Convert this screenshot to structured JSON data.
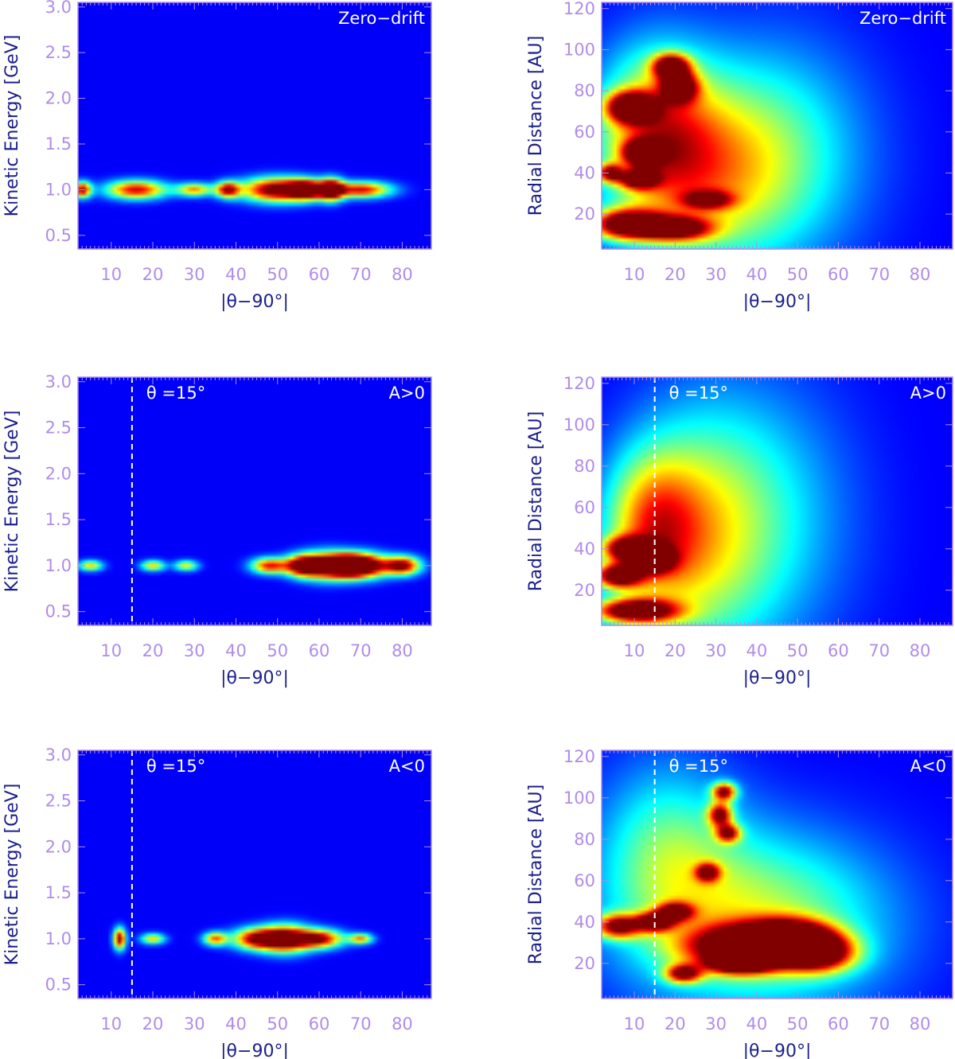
{
  "chart_data": [
    {
      "id": "p1",
      "type": "heatmap",
      "xlabel": "|θ−90°|",
      "ylabel": "Kinetic Energy [GeV]",
      "xlim": [
        2,
        87
      ],
      "ylim": [
        0.35,
        3.05
      ],
      "xticks": [
        10,
        20,
        30,
        40,
        50,
        60,
        70,
        80
      ],
      "yticks": [
        0.5,
        1.0,
        1.5,
        2.0,
        2.5,
        3.0
      ],
      "label_right": "Zero−drift",
      "label_left": "",
      "dashed_x": null,
      "blobs": [
        {
          "x": 3,
          "y": 1.0,
          "sx": 1.5,
          "sy": 0.06,
          "a": 0.85
        },
        {
          "x": 16,
          "y": 1.0,
          "sx": 5,
          "sy": 0.07,
          "a": 0.8
        },
        {
          "x": 30,
          "y": 1.0,
          "sx": 3,
          "sy": 0.05,
          "a": 0.6
        },
        {
          "x": 38,
          "y": 1.0,
          "sx": 2,
          "sy": 0.06,
          "a": 0.8
        },
        {
          "x": 50,
          "y": 1.0,
          "sx": 6,
          "sy": 0.09,
          "a": 1.0
        },
        {
          "x": 57,
          "y": 1.0,
          "sx": 3,
          "sy": 0.07,
          "a": 0.95
        },
        {
          "x": 63,
          "y": 1.0,
          "sx": 2,
          "sy": 0.08,
          "a": 1.0
        },
        {
          "x": 70,
          "y": 1.0,
          "sx": 5,
          "sy": 0.06,
          "a": 0.8
        }
      ]
    },
    {
      "id": "p2",
      "type": "heatmap",
      "xlabel": "|θ−90°|",
      "ylabel": "Radial Distance [AU]",
      "xlim": [
        2,
        88
      ],
      "ylim": [
        3,
        123
      ],
      "xticks": [
        10,
        20,
        30,
        40,
        50,
        60,
        70,
        80
      ],
      "yticks": [
        20,
        40,
        60,
        80,
        100,
        120
      ],
      "label_right": "Zero−drift",
      "label_left": "",
      "dashed_x": null,
      "blobs": [
        {
          "x": 8,
          "y": 15,
          "sx": 6,
          "sy": 5,
          "a": 1.0
        },
        {
          "x": 20,
          "y": 13,
          "sx": 6,
          "sy": 4,
          "a": 0.8
        },
        {
          "x": 9,
          "y": 72,
          "sx": 4,
          "sy": 5,
          "a": 0.95
        },
        {
          "x": 19,
          "y": 92,
          "sx": 3,
          "sy": 4,
          "a": 0.9
        },
        {
          "x": 21,
          "y": 82,
          "sx": 3,
          "sy": 5,
          "a": 0.8
        },
        {
          "x": 12,
          "y": 50,
          "sx": 3,
          "sy": 4,
          "a": 0.85
        },
        {
          "x": 11,
          "y": 37,
          "sx": 3,
          "sy": 3,
          "a": 0.8
        },
        {
          "x": 4,
          "y": 40,
          "sx": 2,
          "sy": 3,
          "a": 0.7
        },
        {
          "x": 15,
          "y": 60,
          "sx": 10,
          "sy": 28,
          "a": 0.55
        },
        {
          "x": 28,
          "y": 40,
          "sx": 14,
          "sy": 30,
          "a": 0.4
        },
        {
          "x": 45,
          "y": 50,
          "sx": 16,
          "sy": 38,
          "a": 0.28
        },
        {
          "x": 28,
          "y": 27,
          "sx": 4,
          "sy": 3,
          "a": 0.55
        }
      ]
    },
    {
      "id": "p3",
      "type": "heatmap",
      "xlabel": "|θ−90°|",
      "ylabel": "Kinetic Energy [GeV]",
      "xlim": [
        2,
        87
      ],
      "ylim": [
        0.35,
        3.05
      ],
      "xticks": [
        10,
        20,
        30,
        40,
        50,
        60,
        70,
        80
      ],
      "yticks": [
        0.5,
        1.0,
        1.5,
        2.0,
        2.5,
        3.0
      ],
      "label_right": "A>0",
      "label_left": "θ =15°",
      "dashed_x": 15,
      "blobs": [
        {
          "x": 5,
          "y": 1.0,
          "sx": 2,
          "sy": 0.04,
          "a": 0.55
        },
        {
          "x": 20,
          "y": 1.0,
          "sx": 2,
          "sy": 0.04,
          "a": 0.55
        },
        {
          "x": 28,
          "y": 1.0,
          "sx": 2,
          "sy": 0.04,
          "a": 0.5
        },
        {
          "x": 48,
          "y": 1.0,
          "sx": 3,
          "sy": 0.06,
          "a": 0.75
        },
        {
          "x": 56,
          "y": 1.0,
          "sx": 3,
          "sy": 0.08,
          "a": 0.95
        },
        {
          "x": 62,
          "y": 1.0,
          "sx": 4,
          "sy": 0.1,
          "a": 1.0
        },
        {
          "x": 71,
          "y": 1.0,
          "sx": 4,
          "sy": 0.09,
          "a": 1.0
        },
        {
          "x": 80,
          "y": 1.0,
          "sx": 3,
          "sy": 0.07,
          "a": 0.9
        },
        {
          "x": 67,
          "y": 1.0,
          "sx": 3,
          "sy": 0.08,
          "a": 0.85
        }
      ]
    },
    {
      "id": "p4",
      "type": "heatmap",
      "xlabel": "|θ−90°|",
      "ylabel": "Radial Distance [AU]",
      "xlim": [
        2,
        88
      ],
      "ylim": [
        3,
        123
      ],
      "xticks": [
        10,
        20,
        30,
        40,
        50,
        60,
        70,
        80
      ],
      "yticks": [
        20,
        40,
        60,
        80,
        100,
        120
      ],
      "label_right": "A>0",
      "label_left": "θ =15°",
      "dashed_x": 15,
      "blobs": [
        {
          "x": 10,
          "y": 10,
          "sx": 7,
          "sy": 4,
          "a": 1.0
        },
        {
          "x": 6,
          "y": 27,
          "sx": 4,
          "sy": 4,
          "a": 0.9
        },
        {
          "x": 15,
          "y": 35,
          "sx": 3,
          "sy": 4,
          "a": 0.8
        },
        {
          "x": 8,
          "y": 40,
          "sx": 4,
          "sy": 4,
          "a": 0.75
        },
        {
          "x": 14,
          "y": 50,
          "sx": 8,
          "sy": 25,
          "a": 0.5
        },
        {
          "x": 25,
          "y": 45,
          "sx": 12,
          "sy": 40,
          "a": 0.35
        },
        {
          "x": 40,
          "y": 55,
          "sx": 16,
          "sy": 45,
          "a": 0.25
        }
      ]
    },
    {
      "id": "p5",
      "type": "heatmap",
      "xlabel": "|θ−90°|",
      "ylabel": "Kinetic Energy [GeV]",
      "xlim": [
        2,
        87
      ],
      "ylim": [
        0.35,
        3.05
      ],
      "xticks": [
        10,
        20,
        30,
        40,
        50,
        60,
        70,
        80
      ],
      "yticks": [
        0.5,
        1.0,
        1.5,
        2.0,
        2.5,
        3.0
      ],
      "label_right": "A<0",
      "label_left": "θ =15°",
      "dashed_x": 15,
      "blobs": [
        {
          "x": 12,
          "y": 1.0,
          "sx": 1,
          "sy": 0.08,
          "a": 0.9
        },
        {
          "x": 20,
          "y": 1.0,
          "sx": 2,
          "sy": 0.04,
          "a": 0.55
        },
        {
          "x": 35,
          "y": 1.0,
          "sx": 2,
          "sy": 0.05,
          "a": 0.65
        },
        {
          "x": 45,
          "y": 1.0,
          "sx": 4,
          "sy": 0.08,
          "a": 0.85
        },
        {
          "x": 52,
          "y": 1.0,
          "sx": 4,
          "sy": 0.1,
          "a": 1.0
        },
        {
          "x": 60,
          "y": 1.0,
          "sx": 4,
          "sy": 0.07,
          "a": 0.85
        },
        {
          "x": 70,
          "y": 1.0,
          "sx": 2,
          "sy": 0.04,
          "a": 0.6
        }
      ]
    },
    {
      "id": "p6",
      "type": "heatmap",
      "xlabel": "|θ−90°|",
      "ylabel": "Radial Distance [AU]",
      "xlim": [
        2,
        88
      ],
      "ylim": [
        3,
        123
      ],
      "xticks": [
        10,
        20,
        30,
        40,
        50,
        60,
        70,
        80
      ],
      "yticks": [
        20,
        40,
        60,
        80,
        100,
        120
      ],
      "label_right": "A<0",
      "label_left": "θ =15°",
      "dashed_x": 15,
      "blobs": [
        {
          "x": 38,
          "y": 28,
          "sx": 10,
          "sy": 7,
          "a": 1.0
        },
        {
          "x": 48,
          "y": 32,
          "sx": 7,
          "sy": 6,
          "a": 0.95
        },
        {
          "x": 55,
          "y": 25,
          "sx": 6,
          "sy": 6,
          "a": 0.85
        },
        {
          "x": 36,
          "y": 20,
          "sx": 5,
          "sy": 3,
          "a": 0.95
        },
        {
          "x": 6,
          "y": 38,
          "sx": 4,
          "sy": 4,
          "a": 0.8
        },
        {
          "x": 15,
          "y": 40,
          "sx": 3,
          "sy": 3,
          "a": 0.85
        },
        {
          "x": 20,
          "y": 45,
          "sx": 3,
          "sy": 3,
          "a": 0.7
        },
        {
          "x": 32,
          "y": 103,
          "sx": 2,
          "sy": 3,
          "a": 0.8
        },
        {
          "x": 31,
          "y": 92,
          "sx": 2,
          "sy": 4,
          "a": 0.75
        },
        {
          "x": 33,
          "y": 83,
          "sx": 2,
          "sy": 3,
          "a": 0.7
        },
        {
          "x": 28,
          "y": 64,
          "sx": 2,
          "sy": 3,
          "a": 0.65
        },
        {
          "x": 22,
          "y": 15,
          "sx": 3,
          "sy": 3,
          "a": 0.75
        },
        {
          "x": 40,
          "y": 40,
          "sx": 22,
          "sy": 30,
          "a": 0.45
        },
        {
          "x": 18,
          "y": 75,
          "sx": 12,
          "sy": 30,
          "a": 0.3
        }
      ]
    }
  ],
  "colors": {
    "background_field": "#000a78",
    "tick_text": "#b08ce8",
    "axis_title": "#1c1f8a",
    "annotation": "#ffffff"
  }
}
